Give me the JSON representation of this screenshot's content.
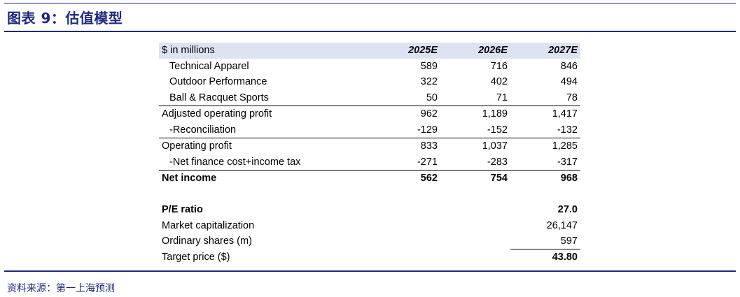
{
  "figure": {
    "title": "图表 9：估值模型",
    "source": "资料来源：第一上海预测"
  },
  "table": {
    "header": {
      "label": "$ in millions",
      "cols": [
        "2025E",
        "2026E",
        "2027E"
      ]
    },
    "rows": [
      {
        "label": "Technical Apparel",
        "values": [
          "589",
          "716",
          "846"
        ]
      },
      {
        "label": "Outdoor Performance",
        "values": [
          "322",
          "402",
          "494"
        ]
      },
      {
        "label": "Ball & Racquet Sports",
        "values": [
          "50",
          "71",
          "78"
        ]
      },
      {
        "label": "Adjusted operating profit",
        "values": [
          "962",
          "1,189",
          "1,417"
        ]
      },
      {
        "label": "-Reconciliation",
        "values": [
          "-129",
          "-152",
          "-132"
        ]
      },
      {
        "label": "Operating profit",
        "values": [
          "833",
          "1,037",
          "1,285"
        ]
      },
      {
        "label": "-Net finance cost+income tax",
        "values": [
          "-271",
          "-283",
          "-317"
        ]
      },
      {
        "label": "Net income",
        "values": [
          "562",
          "754",
          "968"
        ]
      }
    ],
    "valuation": [
      {
        "label": "P/E ratio",
        "value": "27.0"
      },
      {
        "label": "Market capitalization",
        "value": "26,147"
      },
      {
        "label": "Ordinary shares (m)",
        "value": "597"
      },
      {
        "label": "Target price ($)",
        "value": "43.80"
      }
    ]
  }
}
